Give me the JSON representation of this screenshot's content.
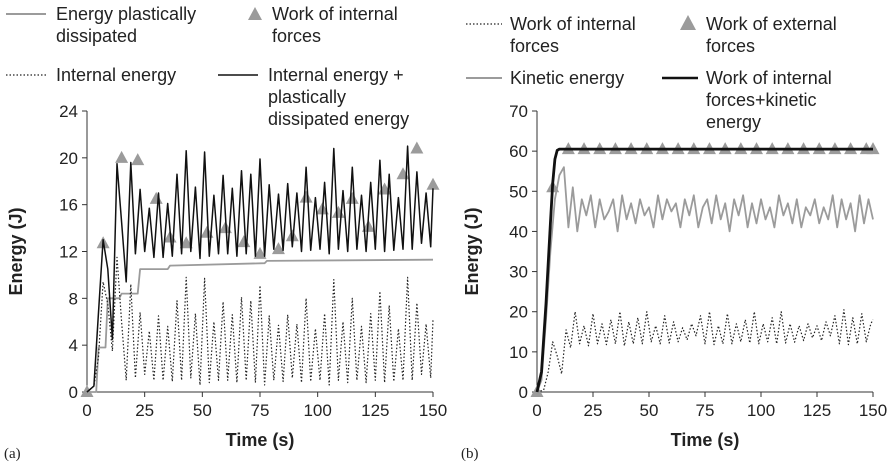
{
  "chart_data": [
    {
      "panel_label": "(a)",
      "type": "line",
      "xlabel": "Time (s)",
      "ylabel": "Energy (J)",
      "xlim": [
        0,
        150
      ],
      "ylim": [
        0,
        24
      ],
      "x_ticks": [
        "0",
        "25",
        "50",
        "75",
        "100",
        "125",
        "150"
      ],
      "y_ticks": [
        "0",
        "4",
        "8",
        "12",
        "16",
        "20",
        "24"
      ],
      "grid": false,
      "legend_position": "top",
      "series": [
        {
          "name": "Energy plastically dissipated",
          "style": "solid",
          "color": "#9b9b9b",
          "x": [
            0,
            4,
            5,
            8,
            9,
            14,
            15,
            22,
            23,
            35,
            36,
            77,
            78,
            150
          ],
          "y": [
            0,
            0,
            3.8,
            3.8,
            8.0,
            8.0,
            8.4,
            8.4,
            10.5,
            10.5,
            10.8,
            11.0,
            11.2,
            11.3
          ]
        },
        {
          "name": "Work of internal forces",
          "style": "marker",
          "color": "#9b9b9b",
          "x": [
            0,
            7,
            15,
            22,
            30,
            36,
            43,
            52,
            60,
            68,
            75,
            83,
            89,
            95,
            102,
            109,
            115,
            122,
            129,
            137,
            143,
            150
          ],
          "y": [
            0,
            12.7,
            20.0,
            19.8,
            16.5,
            13.2,
            12.7,
            13.6,
            14.0,
            12.8,
            11.8,
            12.2,
            13.3,
            16.6,
            15.6,
            15.3,
            16.5,
            14.1,
            17.3,
            18.6,
            20.8,
            17.7
          ]
        },
        {
          "name": "Internal energy",
          "style": "dotted",
          "color": "#222222",
          "x": [
            0,
            3,
            5,
            7,
            9,
            11,
            13,
            15,
            17,
            19,
            21,
            23,
            25,
            27,
            29,
            31,
            33,
            35,
            37,
            39,
            41,
            43,
            45,
            47,
            49,
            51,
            53,
            55,
            57,
            59,
            61,
            63,
            65,
            67,
            69,
            71,
            73,
            75,
            77,
            79,
            81,
            83,
            85,
            87,
            89,
            91,
            93,
            95,
            97,
            99,
            101,
            103,
            105,
            107,
            109,
            111,
            113,
            115,
            117,
            119,
            121,
            123,
            125,
            127,
            129,
            131,
            133,
            135,
            137,
            139,
            141,
            143,
            145,
            147,
            149,
            150
          ],
          "y": [
            0,
            0.5,
            3.0,
            9.4,
            7.5,
            3.5,
            11.5,
            6.0,
            1.0,
            9.2,
            1.2,
            6.8,
            1.5,
            5.2,
            1.0,
            6.5,
            1.0,
            5.6,
            0.9,
            7.8,
            1.0,
            9.8,
            1.2,
            6.7,
            0.6,
            9.7,
            0.8,
            6.0,
            1.0,
            7.7,
            1.0,
            6.6,
            0.8,
            8.1,
            1.0,
            7.8,
            0.8,
            9.1,
            0.6,
            6.5,
            1.0,
            5.7,
            0.9,
            6.6,
            1.2,
            5.8,
            0.8,
            8.0,
            0.9,
            5.4,
            1.0,
            6.7,
            0.6,
            9.6,
            1.0,
            6.0,
            0.8,
            8.0,
            1.0,
            5.6,
            0.8,
            6.7,
            1.0,
            8.6,
            0.8,
            7.4,
            0.9,
            5.4,
            1.0,
            9.8,
            1.0,
            7.6,
            1.5,
            5.8,
            1.2,
            6.2
          ]
        },
        {
          "name": "Internal energy + plastically dissipated energy",
          "style": "solid",
          "color": "#111111",
          "x": [
            0,
            3,
            5,
            7,
            9,
            11,
            13,
            15,
            17,
            19,
            21,
            23,
            25,
            27,
            29,
            31,
            33,
            35,
            37,
            39,
            41,
            43,
            45,
            47,
            49,
            51,
            53,
            55,
            57,
            59,
            61,
            63,
            65,
            67,
            69,
            71,
            73,
            75,
            77,
            79,
            81,
            83,
            85,
            87,
            89,
            91,
            93,
            95,
            97,
            99,
            101,
            103,
            105,
            107,
            109,
            111,
            113,
            115,
            117,
            119,
            121,
            123,
            125,
            127,
            129,
            131,
            133,
            135,
            137,
            139,
            141,
            143,
            145,
            147,
            149,
            150
          ],
          "y": [
            0,
            0.5,
            6.8,
            13.0,
            10.5,
            4.5,
            19.5,
            14.5,
            9.4,
            19.6,
            11.8,
            17.3,
            12.0,
            15.7,
            11.5,
            17.0,
            11.5,
            16.1,
            11.6,
            18.6,
            11.8,
            20.6,
            12.0,
            17.5,
            11.4,
            20.5,
            11.6,
            16.8,
            11.8,
            18.5,
            11.8,
            17.4,
            11.6,
            18.9,
            11.8,
            18.6,
            11.6,
            19.9,
            11.6,
            17.7,
            12.2,
            16.9,
            12.1,
            17.8,
            12.4,
            17.0,
            12.0,
            19.2,
            12.1,
            16.6,
            12.2,
            17.9,
            11.8,
            20.8,
            12.2,
            17.2,
            12.0,
            19.2,
            12.2,
            16.8,
            12.0,
            17.9,
            12.2,
            19.8,
            12.0,
            18.6,
            12.1,
            16.6,
            12.2,
            21.0,
            12.2,
            18.8,
            12.7,
            17.0,
            12.4,
            17.4
          ]
        }
      ]
    },
    {
      "panel_label": "(b)",
      "type": "line",
      "xlabel": "Time (s)",
      "ylabel": "Energy (J)",
      "xlim": [
        0,
        150
      ],
      "ylim": [
        0,
        70
      ],
      "x_ticks": [
        "0",
        "25",
        "50",
        "75",
        "100",
        "125",
        "150"
      ],
      "y_ticks": [
        "0",
        "10",
        "20",
        "30",
        "40",
        "50",
        "60",
        "70"
      ],
      "grid": false,
      "legend_position": "top",
      "series": [
        {
          "name": "Work of internal forces",
          "style": "dotted",
          "color": "#222222",
          "x": [
            0,
            3,
            5,
            7,
            9,
            11,
            13,
            15,
            17,
            19,
            21,
            23,
            25,
            27,
            29,
            31,
            33,
            35,
            37,
            39,
            41,
            43,
            45,
            47,
            49,
            51,
            53,
            55,
            57,
            59,
            61,
            63,
            65,
            67,
            69,
            71,
            73,
            75,
            77,
            79,
            81,
            83,
            85,
            87,
            89,
            91,
            93,
            95,
            97,
            99,
            101,
            103,
            105,
            107,
            109,
            111,
            113,
            115,
            117,
            119,
            121,
            123,
            125,
            127,
            129,
            131,
            133,
            135,
            137,
            139,
            141,
            143,
            145,
            147,
            149,
            150
          ],
          "y": [
            0,
            0.5,
            5.0,
            12.5,
            9.0,
            4.5,
            15.5,
            11.0,
            20.0,
            12.0,
            16.5,
            11.5,
            19.5,
            12.0,
            17.0,
            11.8,
            18.0,
            12.0,
            20.0,
            11.5,
            17.5,
            12.0,
            18.5,
            12.0,
            20.0,
            12.5,
            16.5,
            12.0,
            19.0,
            12.2,
            17.5,
            12.5,
            16.0,
            13.0,
            17.0,
            14.0,
            19.0,
            12.0,
            20.0,
            11.8,
            16.5,
            12.0,
            19.5,
            12.0,
            17.0,
            12.5,
            18.0,
            12.2,
            20.0,
            12.0,
            17.0,
            12.5,
            18.5,
            12.0,
            20.0,
            12.2,
            17.0,
            12.4,
            16.5,
            12.8,
            17.0,
            13.5,
            16.5,
            12.8,
            17.5,
            14.0,
            19.0,
            12.0,
            20.5,
            11.8,
            18.5,
            12.0,
            19.5,
            12.5,
            17.0,
            18.0
          ]
        },
        {
          "name": "Work of external forces",
          "style": "marker",
          "color": "#9b9b9b",
          "x": [
            0,
            7,
            14,
            21,
            28,
            35,
            42,
            49,
            56,
            63,
            70,
            77,
            84,
            91,
            98,
            105,
            112,
            119,
            126,
            133,
            140,
            147,
            150
          ],
          "y": [
            0,
            51,
            60.5,
            60.5,
            60.5,
            60.5,
            60.5,
            60.5,
            60.5,
            60.5,
            60.5,
            60.5,
            60.5,
            60.5,
            60.5,
            60.5,
            60.5,
            60.5,
            60.5,
            60.5,
            60.5,
            60.5,
            60.5
          ]
        },
        {
          "name": "Kinetic energy",
          "style": "solid",
          "color": "#9b9b9b",
          "x": [
            0,
            2,
            4,
            6,
            8,
            10,
            12,
            14,
            16,
            18,
            20,
            22,
            24,
            26,
            28,
            30,
            32,
            34,
            36,
            38,
            40,
            42,
            44,
            46,
            48,
            50,
            52,
            54,
            56,
            58,
            60,
            62,
            64,
            66,
            68,
            70,
            72,
            74,
            76,
            78,
            80,
            82,
            84,
            86,
            88,
            90,
            92,
            94,
            96,
            98,
            100,
            102,
            104,
            106,
            108,
            110,
            112,
            114,
            116,
            118,
            120,
            122,
            124,
            126,
            128,
            130,
            132,
            134,
            136,
            138,
            140,
            142,
            144,
            146,
            148,
            150
          ],
          "y": [
            0,
            3,
            18,
            35,
            48,
            54,
            56,
            41,
            51,
            40,
            48,
            44,
            49,
            41,
            48,
            43,
            45,
            48,
            40,
            49,
            43,
            47,
            42,
            48,
            44,
            46,
            41,
            49,
            43,
            48,
            45,
            47,
            41,
            48,
            44,
            49,
            41,
            46,
            48,
            42,
            49,
            43,
            47,
            40,
            48,
            44,
            49,
            41,
            47,
            42,
            48,
            43,
            46,
            41,
            49,
            44,
            47,
            42,
            48,
            41,
            46,
            44,
            48,
            42,
            46,
            43,
            49,
            41,
            48,
            43,
            47,
            40,
            49,
            42,
            48,
            43
          ]
        },
        {
          "name": "Work of internal forces+kinetic energy",
          "style": "solid-thick",
          "color": "#111111",
          "x": [
            0,
            2,
            4,
            6,
            7,
            8,
            9,
            10,
            150
          ],
          "y": [
            0,
            5,
            22,
            42,
            52,
            58,
            60.2,
            60.5,
            60.5
          ]
        }
      ]
    }
  ]
}
